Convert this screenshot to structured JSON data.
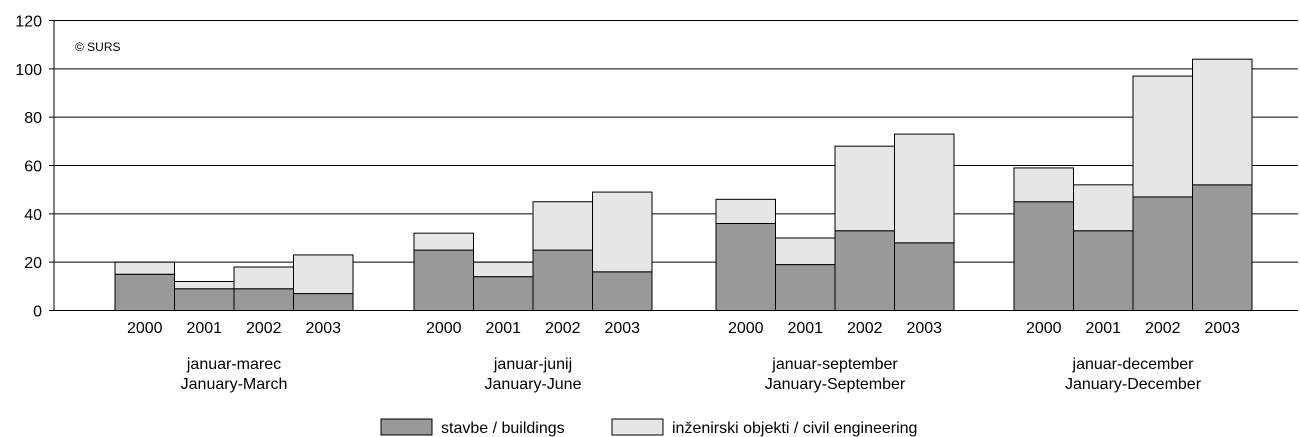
{
  "chart_data": {
    "type": "bar",
    "stacked": true,
    "copyright": "© SURS",
    "ylim": [
      0,
      120
    ],
    "yticks": [
      0,
      20,
      40,
      60,
      80,
      100,
      120
    ],
    "grid": true,
    "legend_position": "bottom-center",
    "groups": [
      {
        "label_sl": "januar-marec",
        "label_en": "January-March"
      },
      {
        "label_sl": "januar-junij",
        "label_en": "January-June"
      },
      {
        "label_sl": "januar-september",
        "label_en": "January-September"
      },
      {
        "label_sl": "januar-december",
        "label_en": "January-December"
      }
    ],
    "years": [
      "2000",
      "2001",
      "2002",
      "2003"
    ],
    "series": [
      {
        "name": "stavbe / buildings",
        "color": "#999999",
        "values": [
          [
            15,
            9,
            9,
            7
          ],
          [
            25,
            14,
            25,
            16
          ],
          [
            36,
            19,
            33,
            28
          ],
          [
            45,
            33,
            47,
            52
          ]
        ]
      },
      {
        "name": "inženirski objekti / civil engineering",
        "color": "#e6e6e6",
        "values": [
          [
            5,
            3,
            9,
            16
          ],
          [
            7,
            6,
            20,
            33
          ],
          [
            10,
            11,
            35,
            45
          ],
          [
            14,
            19,
            50,
            52
          ]
        ]
      }
    ]
  }
}
